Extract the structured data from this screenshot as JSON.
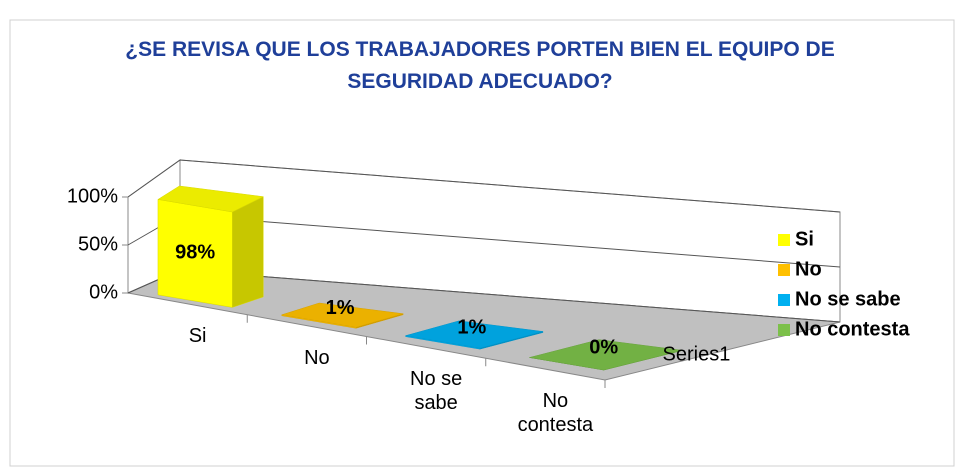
{
  "chart_data": {
    "type": "bar3d",
    "title": "¿SE REVISA QUE LOS TRABAJADORES PORTEN BIEN EL EQUIPO DE SEGURIDAD ADECUADO?",
    "categories": [
      "Si",
      "No",
      "No se sabe",
      "No contesta"
    ],
    "values": [
      98,
      1,
      1,
      0
    ],
    "value_labels": [
      "98%",
      "1%",
      "1%",
      "0%"
    ],
    "colors": [
      "#ffff00",
      "#ffc000",
      "#00b0f0",
      "#7cc04a"
    ],
    "series_name": "Series1",
    "ylim": [
      0,
      100
    ],
    "yticks": [
      {
        "value": 0,
        "label": "0%"
      },
      {
        "value": 50,
        "label": "50%"
      },
      {
        "value": 100,
        "label": "100%"
      }
    ],
    "grid": true,
    "legend": "right"
  }
}
